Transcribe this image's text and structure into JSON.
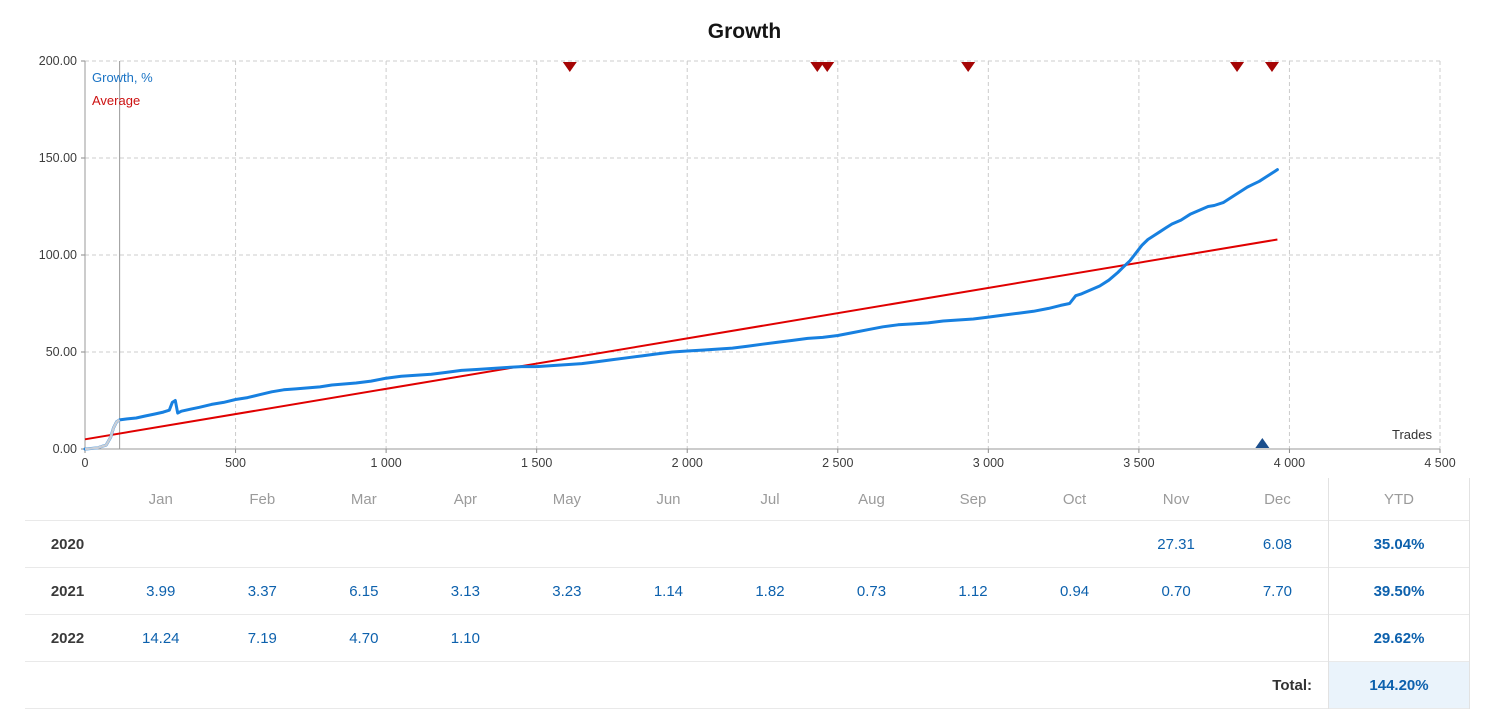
{
  "title": "Growth",
  "legend": {
    "growth_label": "Growth, %",
    "average_label": "Average"
  },
  "axis": {
    "y_tick_labels": [
      "0.00",
      "50.00",
      "100.00",
      "150.00",
      "200.00"
    ],
    "y_tick_values": [
      0,
      50,
      100,
      150,
      200
    ],
    "x_tick_labels": [
      "0",
      "500",
      "1 000",
      "1 500",
      "2 000",
      "2 500",
      "3 000",
      "3 500",
      "4 000",
      "4 500"
    ],
    "x_tick_values": [
      0,
      500,
      1000,
      1500,
      2000,
      2500,
      3000,
      3500,
      4000,
      4500
    ],
    "x_axis_label": "Trades"
  },
  "chart_data": {
    "type": "line",
    "title": "Growth",
    "xlabel": "Trades",
    "ylabel": "Growth, %",
    "xlim": [
      0,
      4500
    ],
    "ylim": [
      0,
      200
    ],
    "grid": true,
    "legend_position": "top-left",
    "series": [
      {
        "name": "Growth, %",
        "color": "#1780e0",
        "points": [
          [
            0,
            0
          ],
          [
            40,
            0.5
          ],
          [
            70,
            2
          ],
          [
            85,
            6
          ],
          [
            95,
            11
          ],
          [
            105,
            14
          ],
          [
            115,
            15
          ],
          [
            140,
            15.5
          ],
          [
            170,
            16
          ],
          [
            200,
            17
          ],
          [
            230,
            18
          ],
          [
            260,
            19
          ],
          [
            280,
            20
          ],
          [
            290,
            24
          ],
          [
            300,
            25
          ],
          [
            308,
            18.5
          ],
          [
            320,
            19.5
          ],
          [
            350,
            20.5
          ],
          [
            380,
            21.5
          ],
          [
            420,
            23
          ],
          [
            460,
            24
          ],
          [
            500,
            25.5
          ],
          [
            540,
            26.5
          ],
          [
            580,
            28
          ],
          [
            620,
            29.5
          ],
          [
            660,
            30.5
          ],
          [
            700,
            31
          ],
          [
            740,
            31.5
          ],
          [
            780,
            32
          ],
          [
            820,
            33
          ],
          [
            860,
            33.5
          ],
          [
            900,
            34
          ],
          [
            950,
            35
          ],
          [
            1000,
            36.5
          ],
          [
            1050,
            37.5
          ],
          [
            1100,
            38
          ],
          [
            1150,
            38.5
          ],
          [
            1200,
            39.5
          ],
          [
            1250,
            40.5
          ],
          [
            1300,
            41
          ],
          [
            1350,
            41.5
          ],
          [
            1400,
            42
          ],
          [
            1450,
            42.5
          ],
          [
            1500,
            42.5
          ],
          [
            1550,
            43
          ],
          [
            1600,
            43.5
          ],
          [
            1650,
            44
          ],
          [
            1700,
            45
          ],
          [
            1750,
            46
          ],
          [
            1800,
            47
          ],
          [
            1850,
            48
          ],
          [
            1900,
            49
          ],
          [
            1950,
            50
          ],
          [
            2000,
            50.5
          ],
          [
            2050,
            51
          ],
          [
            2100,
            51.5
          ],
          [
            2150,
            52
          ],
          [
            2200,
            53
          ],
          [
            2250,
            54
          ],
          [
            2300,
            55
          ],
          [
            2350,
            56
          ],
          [
            2400,
            57
          ],
          [
            2450,
            57.5
          ],
          [
            2500,
            58.5
          ],
          [
            2550,
            60
          ],
          [
            2600,
            61.5
          ],
          [
            2650,
            63
          ],
          [
            2700,
            64
          ],
          [
            2750,
            64.5
          ],
          [
            2800,
            65
          ],
          [
            2850,
            66
          ],
          [
            2900,
            66.5
          ],
          [
            2950,
            67
          ],
          [
            3000,
            68
          ],
          [
            3050,
            69
          ],
          [
            3100,
            70
          ],
          [
            3150,
            71
          ],
          [
            3200,
            72.5
          ],
          [
            3240,
            74
          ],
          [
            3270,
            75
          ],
          [
            3290,
            79
          ],
          [
            3310,
            80
          ],
          [
            3340,
            82
          ],
          [
            3370,
            84
          ],
          [
            3400,
            87
          ],
          [
            3430,
            91
          ],
          [
            3450,
            94
          ],
          [
            3470,
            97
          ],
          [
            3490,
            101
          ],
          [
            3510,
            105
          ],
          [
            3530,
            108
          ],
          [
            3550,
            110
          ],
          [
            3570,
            112
          ],
          [
            3590,
            114
          ],
          [
            3610,
            116
          ],
          [
            3640,
            118
          ],
          [
            3670,
            121
          ],
          [
            3700,
            123
          ],
          [
            3730,
            125
          ],
          [
            3750,
            125.5
          ],
          [
            3780,
            127
          ],
          [
            3800,
            129
          ],
          [
            3820,
            131
          ],
          [
            3840,
            133
          ],
          [
            3860,
            135
          ],
          [
            3880,
            136.5
          ],
          [
            3900,
            138
          ],
          [
            3920,
            140
          ],
          [
            3935,
            141.5
          ],
          [
            3950,
            143
          ],
          [
            3960,
            144
          ]
        ]
      },
      {
        "name": "Average",
        "color": "#e00000",
        "points": [
          [
            0,
            5
          ],
          [
            3960,
            108
          ]
        ]
      }
    ],
    "markers": {
      "start_line_x": 115,
      "top_red_triangles_x": [
        1610,
        2432,
        2465,
        2933,
        3826,
        3942
      ],
      "bottom_blue_triangles_x": [
        3910
      ]
    }
  },
  "table": {
    "month_headers": [
      "Jan",
      "Feb",
      "Mar",
      "Apr",
      "May",
      "Jun",
      "Jul",
      "Aug",
      "Sep",
      "Oct",
      "Nov",
      "Dec"
    ],
    "ytd_header": "YTD",
    "rows": [
      {
        "year": "2020",
        "months": [
          "",
          "",
          "",
          "",
          "",
          "",
          "",
          "",
          "",
          "",
          "27.31",
          "6.08"
        ],
        "ytd": "35.04%"
      },
      {
        "year": "2021",
        "months": [
          "3.99",
          "3.37",
          "6.15",
          "3.13",
          "3.23",
          "1.14",
          "1.82",
          "0.73",
          "1.12",
          "0.94",
          "0.70",
          "7.70"
        ],
        "ytd": "39.50%"
      },
      {
        "year": "2022",
        "months": [
          "14.24",
          "7.19",
          "4.70",
          "1.10",
          "",
          "",
          "",
          "",
          "",
          "",
          "",
          ""
        ],
        "ytd": "29.62%"
      }
    ],
    "total_label": "Total:",
    "total_value": "144.20%"
  }
}
